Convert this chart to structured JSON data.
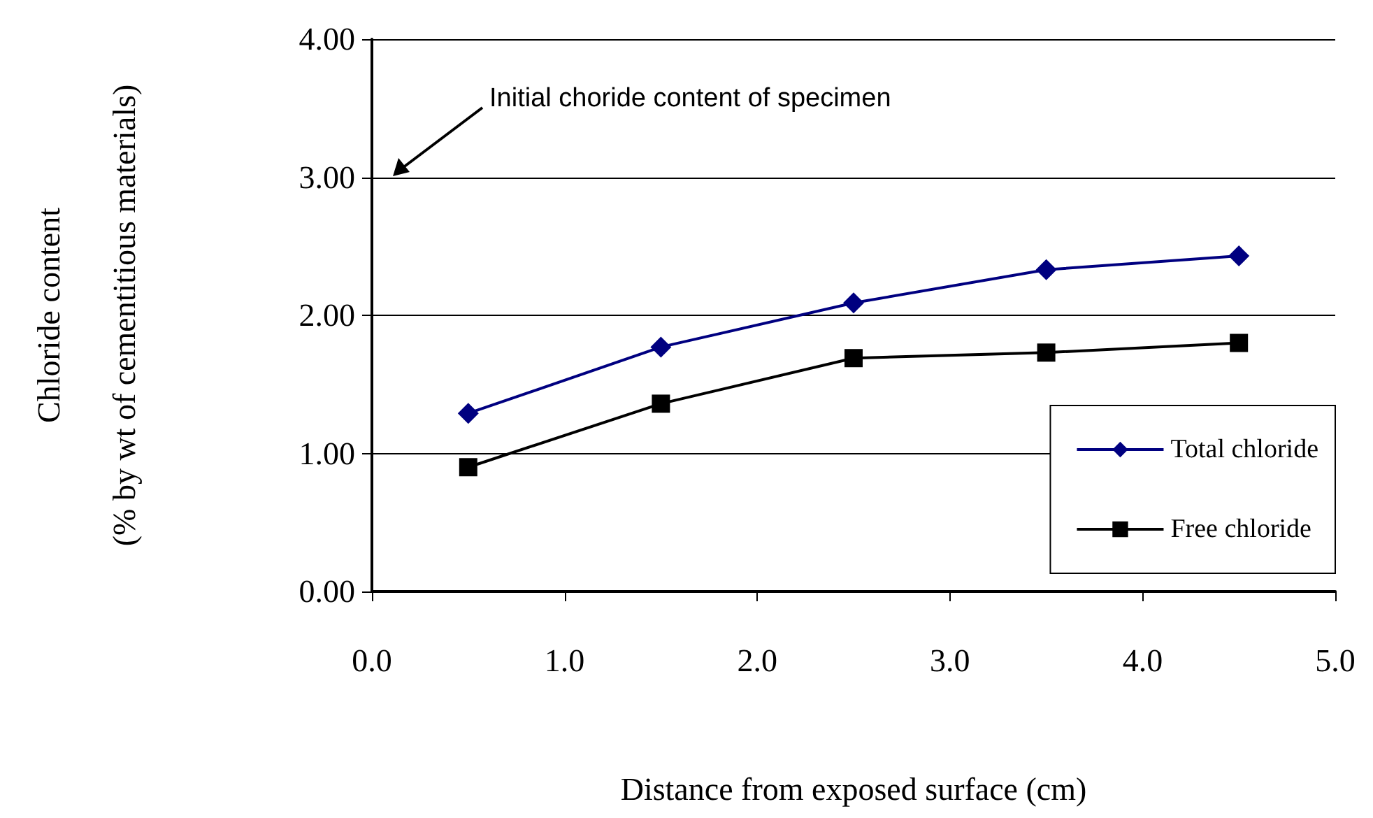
{
  "chart_data": {
    "type": "line",
    "xlabel": "Distance from exposed surface (cm)",
    "ylabel": "Chloride content\n(% by wt of cementitious materials)",
    "x": [
      0.5,
      1.5,
      2.5,
      3.5,
      4.5
    ],
    "series": [
      {
        "name": "Total chloride",
        "color": "#000080",
        "marker": "diamond",
        "values": [
          1.29,
          1.77,
          2.09,
          2.33,
          2.43
        ]
      },
      {
        "name": "Free chloride",
        "color": "#000000",
        "marker": "square",
        "values": [
          0.9,
          1.36,
          1.69,
          1.73,
          1.8
        ]
      }
    ],
    "xlim": [
      0,
      5
    ],
    "xticks": [
      {
        "value": 0,
        "label": "0.0"
      },
      {
        "value": 1,
        "label": "1.0"
      },
      {
        "value": 2,
        "label": "2.0"
      },
      {
        "value": 3,
        "label": "3.0"
      },
      {
        "value": 4,
        "label": "4.0"
      },
      {
        "value": 5,
        "label": "5.0"
      }
    ],
    "ylim": [
      0,
      4
    ],
    "yticks": [
      {
        "value": 0,
        "label": "0.00"
      },
      {
        "value": 1,
        "label": "1.00"
      },
      {
        "value": 2,
        "label": "2.00"
      },
      {
        "value": 3,
        "label": "3.00"
      },
      {
        "value": 4,
        "label": "4.00"
      }
    ],
    "grid": "y",
    "legend": "bottom right",
    "line_style": "solid",
    "annotations": [
      "Initial choride content of specimen"
    ]
  }
}
